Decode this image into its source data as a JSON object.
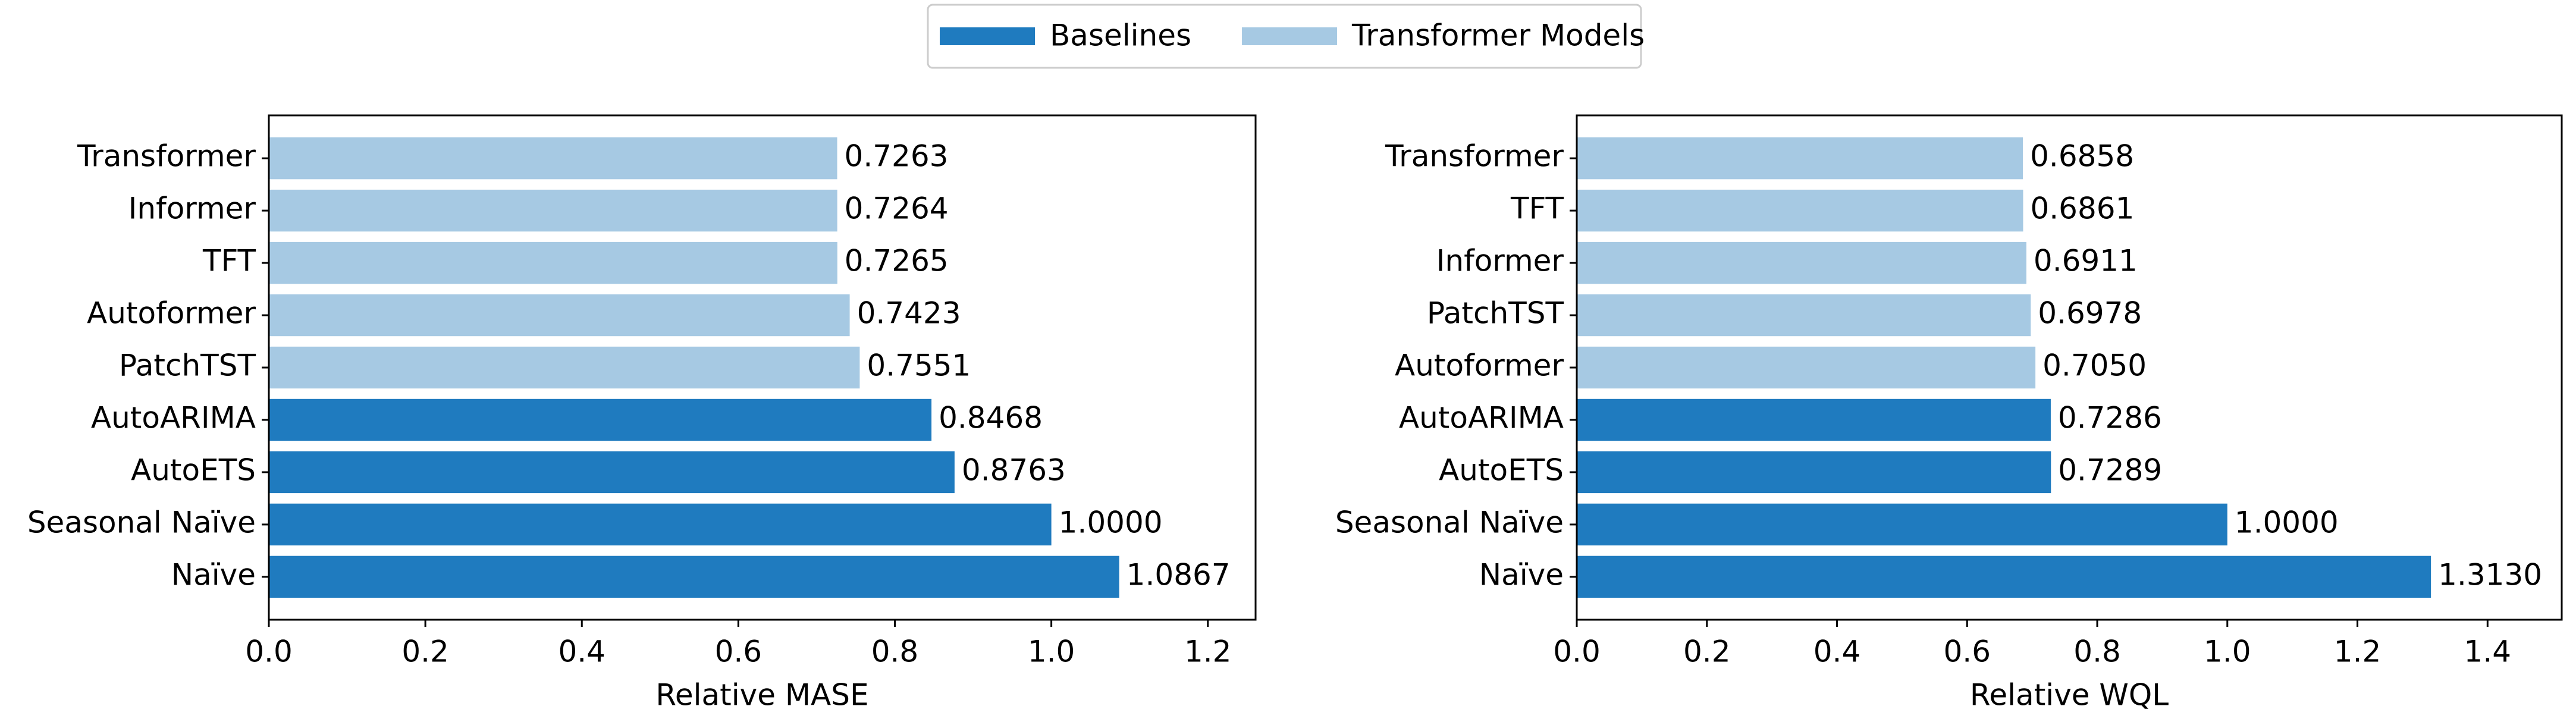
{
  "chart_data": [
    {
      "type": "barh",
      "xlabel": "Relative MASE",
      "categories": [
        "Transformer",
        "Informer",
        "TFT",
        "Autoformer",
        "PatchTST",
        "AutoARIMA",
        "AutoETS",
        "Seasonal Naïve",
        "Naïve"
      ],
      "series": [
        {
          "name": "Baselines",
          "color": "#1f7bbf",
          "values": [
            null,
            null,
            null,
            null,
            null,
            0.8468,
            0.8763,
            1,
            1.0867
          ],
          "value_labels": [
            null,
            null,
            null,
            null,
            null,
            "0.8468",
            "0.8763",
            "1.0000",
            "1.0867"
          ]
        },
        {
          "name": "Transformer Models",
          "color": "#a6c9e3",
          "values": [
            0.7263,
            0.7264,
            0.7265,
            0.7423,
            0.7551,
            null,
            null,
            null,
            null
          ],
          "value_labels": [
            "0.7263",
            "0.7264",
            "0.7265",
            "0.7423",
            "0.7551",
            null,
            null,
            null,
            null
          ]
        }
      ],
      "xlim": [
        0,
        1.261
      ],
      "xticks": [
        {
          "value": 0,
          "label": "0.0"
        },
        0.2,
        0.4,
        0.6,
        0.8,
        {
          "value": 1,
          "label": "1.0"
        },
        1.2
      ]
    },
    {
      "type": "barh",
      "xlabel": "Relative WQL",
      "categories": [
        "Transformer",
        "TFT",
        "Informer",
        "PatchTST",
        "Autoformer",
        "AutoARIMA",
        "AutoETS",
        "Seasonal Naïve",
        "Naïve"
      ],
      "series": [
        {
          "color": "#1f7bbf",
          "values": [
            null,
            null,
            null,
            null,
            null,
            0.7286,
            0.7289,
            1,
            1.313
          ],
          "value_labels": [
            null,
            null,
            null,
            null,
            null,
            "0.7286",
            "0.7289",
            "1.0000",
            "1.3130"
          ]
        },
        {
          "color": "#a6c9e3",
          "values": [
            0.6858,
            0.6861,
            0.6911,
            0.6978,
            0.705,
            null,
            null,
            null,
            null
          ],
          "value_labels": [
            "0.6858",
            "0.6861",
            "0.6911",
            "0.6978",
            "0.7050",
            null,
            null,
            null,
            null
          ]
        }
      ],
      "xlim": [
        0,
        1.514
      ],
      "xticks": [
        {
          "value": 0,
          "label": "0.0"
        },
        0.2,
        0.4,
        0.6,
        0.8,
        {
          "value": 1,
          "label": "1.0"
        },
        1.2,
        1.4
      ]
    }
  ]
}
